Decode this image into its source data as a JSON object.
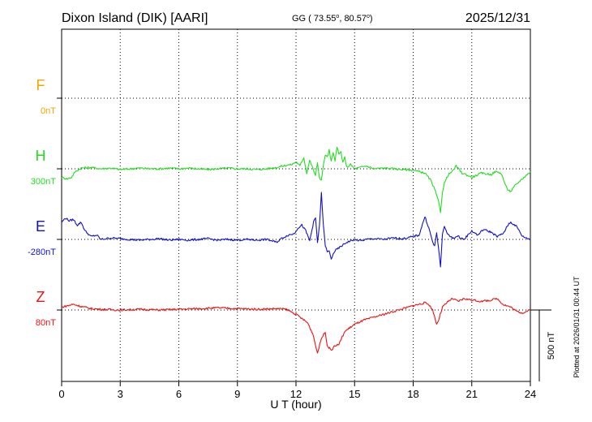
{
  "header": {
    "station": "Dixon Island (DIK)  [AARI]",
    "coords_prefix": "GG ( 73.55",
    "coords_mid": ",  80.57",
    "coords_suffix": ")",
    "degree_sign": "o",
    "date": "2025/12/31"
  },
  "plotted_note": "Plotted at 2026/01/31 00:44 UT",
  "scale_label": "500 nT",
  "chart_data": {
    "type": "line",
    "title": "Dixon Island (DIK)  [AARI]",
    "xlabel": "U T (hour)",
    "ylabel": "",
    "xlim": [
      0,
      24
    ],
    "x_ticks": [
      "0",
      "3",
      "6",
      "9",
      "12",
      "15",
      "18",
      "21",
      "24"
    ],
    "x_tick_values": [
      0,
      3,
      6,
      9,
      12,
      15,
      18,
      21,
      24
    ],
    "grid": true,
    "scale_bar_nT": 500,
    "series": [
      {
        "name": "F",
        "baseline_label": "0nT",
        "color": "#f0a800",
        "values": []
      },
      {
        "name": "H",
        "baseline_label": "300nT",
        "color": "#22dd22",
        "x": [
          0,
          0.3,
          0.5,
          0.7,
          1,
          1.5,
          2,
          2.5,
          3,
          3.5,
          4,
          4.5,
          5,
          5.5,
          6,
          6.5,
          7,
          7.5,
          8,
          8.5,
          9,
          9.5,
          10,
          10.5,
          11,
          11.5,
          11.8,
          12,
          12.2,
          12.4,
          12.55,
          12.7,
          12.9,
          13.0,
          13.1,
          13.2,
          13.3,
          13.4,
          13.5,
          13.6,
          13.7,
          13.8,
          13.9,
          14.0,
          14.1,
          14.2,
          14.3,
          14.4,
          14.5,
          14.6,
          14.8,
          15,
          15.3,
          15.6,
          16,
          16.5,
          17,
          17.5,
          18,
          18.3,
          18.6,
          18.9,
          19.0,
          19.1,
          19.2,
          19.3,
          19.4,
          19.5,
          19.6,
          19.8,
          20,
          20.2,
          20.5,
          20.7,
          21,
          21.5,
          22,
          22.2,
          22.5,
          22.8,
          23,
          23.2,
          23.5,
          24
        ],
        "values": [
          -60,
          -70,
          -60,
          -20,
          5,
          10,
          0,
          5,
          -5,
          0,
          5,
          0,
          0,
          5,
          0,
          5,
          0,
          -5,
          0,
          5,
          0,
          0,
          -5,
          0,
          10,
          25,
          30,
          50,
          20,
          80,
          -30,
          60,
          -10,
          -50,
          40,
          -60,
          -80,
          20,
          100,
          80,
          130,
          50,
          110,
          60,
          150,
          100,
          120,
          40,
          80,
          10,
          30,
          0,
          10,
          20,
          0,
          5,
          0,
          -5,
          -10,
          -20,
          -30,
          -80,
          -120,
          -140,
          -190,
          -230,
          -300,
          -160,
          -100,
          -40,
          -20,
          20,
          -30,
          -40,
          -60,
          -30,
          -40,
          -20,
          -30,
          -140,
          -160,
          -120,
          -80,
          -20
        ],
        "scale_note": "values are offsets in nT relative to 300nT baseline"
      },
      {
        "name": "E",
        "baseline_label": "-280nT",
        "color": "#1111cc",
        "x": [
          0,
          0.2,
          0.4,
          0.6,
          0.8,
          1,
          1.2,
          1.5,
          1.8,
          2,
          2.5,
          3,
          3.5,
          4,
          4.5,
          5,
          5.5,
          6,
          6.5,
          7,
          7.5,
          8,
          8.5,
          9,
          9.5,
          10,
          10.5,
          11,
          11.3,
          11.6,
          11.9,
          12.1,
          12.3,
          12.5,
          12.7,
          12.9,
          13.0,
          13.1,
          13.2,
          13.3,
          13.4,
          13.5,
          13.6,
          13.7,
          13.8,
          13.9,
          14.0,
          14.2,
          14.4,
          14.6,
          14.8,
          15,
          15.3,
          15.6,
          16,
          16.5,
          17,
          17.5,
          18,
          18.3,
          18.6,
          18.8,
          19.0,
          19.1,
          19.2,
          19.3,
          19.4,
          19.5,
          19.6,
          19.8,
          20,
          20.3,
          20.6,
          21,
          21.3,
          21.6,
          22,
          22.3,
          22.6,
          22.9,
          23,
          23.3,
          23.6,
          24
        ],
        "values": [
          120,
          150,
          130,
          140,
          100,
          120,
          60,
          20,
          30,
          0,
          10,
          5,
          0,
          -5,
          0,
          5,
          -5,
          0,
          -5,
          0,
          5,
          -5,
          0,
          -5,
          0,
          -5,
          0,
          -20,
          10,
          30,
          40,
          80,
          100,
          60,
          -10,
          120,
          150,
          -20,
          90,
          330,
          100,
          -40,
          -90,
          -80,
          -140,
          -100,
          -80,
          -60,
          -40,
          -20,
          -10,
          0,
          -10,
          0,
          5,
          0,
          10,
          5,
          20,
          30,
          160,
          80,
          -20,
          -50,
          50,
          -60,
          -200,
          40,
          90,
          30,
          10,
          20,
          0,
          60,
          30,
          70,
          50,
          20,
          40,
          110,
          120,
          90,
          20,
          0
        ],
        "scale_note": "values are offsets in nT relative to -280nT baseline"
      },
      {
        "name": "Z",
        "baseline_label": "80nT",
        "color": "#ee1111",
        "x": [
          0,
          0.3,
          0.6,
          1,
          1.5,
          2,
          3,
          4,
          5,
          6,
          7,
          8,
          9,
          10,
          11,
          11.5,
          12,
          12.3,
          12.6,
          12.9,
          13.0,
          13.1,
          13.3,
          13.5,
          13.6,
          13.8,
          14.0,
          14.2,
          14.5,
          15,
          15.5,
          16,
          16.5,
          17,
          17.5,
          18,
          18.3,
          18.6,
          18.8,
          19.0,
          19.2,
          19.3,
          19.5,
          19.8,
          20,
          20.3,
          20.6,
          21,
          21.5,
          22,
          22.3,
          22.6,
          23,
          23.3,
          23.6,
          24
        ],
        "values": [
          20,
          30,
          40,
          25,
          10,
          5,
          0,
          5,
          0,
          5,
          10,
          15,
          10,
          5,
          10,
          5,
          -30,
          -60,
          -90,
          -180,
          -250,
          -300,
          -200,
          -150,
          -250,
          -280,
          -250,
          -240,
          -150,
          -100,
          -70,
          -50,
          -30,
          -10,
          10,
          30,
          40,
          50,
          40,
          0,
          -100,
          -70,
          20,
          60,
          80,
          60,
          80,
          70,
          60,
          70,
          80,
          40,
          20,
          -10,
          -20,
          0
        ]
      }
    ]
  }
}
